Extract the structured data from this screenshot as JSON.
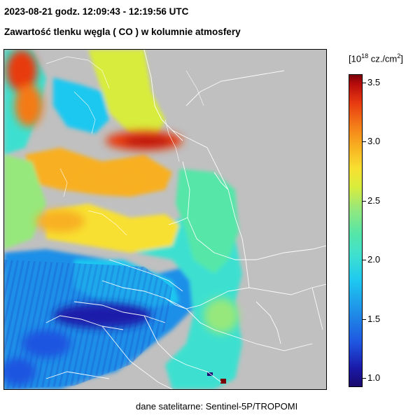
{
  "header": {
    "datetime": "2023-08-21   godz.  12:09:43 - 12:19:56  UTC",
    "title": "Zawartość tlenku węgla ( CO ) w kolumnie atmosfery"
  },
  "colorbar": {
    "unit_prefix": "[10",
    "unit_exp": "18",
    "unit_suffix": " cz./cm",
    "unit_pow": "2",
    "unit_close": "]",
    "ticks": [
      "3.5",
      "3.0",
      "2.5",
      "2.0",
      "1.5",
      "1.0"
    ],
    "range": [
      0.9,
      3.65
    ],
    "colors": [
      "#1a0a6e",
      "#1f55e0",
      "#1ec8f0",
      "#55e6a8",
      "#d8ec3c",
      "#f8b020",
      "#e83a10",
      "#7a0008"
    ]
  },
  "source": "dane satelitarne: Sentinel-5P/TROPOMI",
  "map": {
    "background_color": "#c0c0c0",
    "border_color": "#ffffff"
  }
}
